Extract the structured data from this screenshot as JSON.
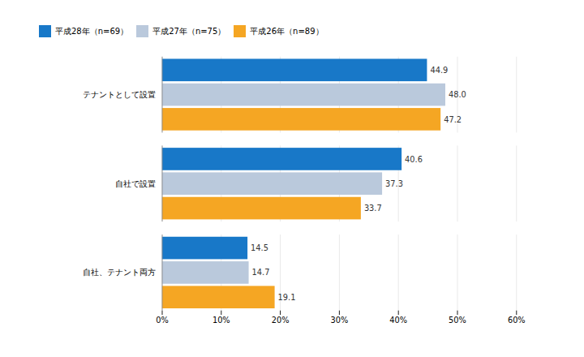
{
  "chart_data": {
    "type": "bar",
    "orientation": "horizontal",
    "categories": [
      "テナントとして設置",
      "自社で設置",
      "自社、テナント両方"
    ],
    "series": [
      {
        "name": "平成28年（n=69）",
        "color": "#1878C8",
        "values": [
          44.9,
          40.6,
          14.5
        ],
        "value_labels": [
          "44.9",
          "40.6",
          "14.5"
        ]
      },
      {
        "name": "平成27年（n=75）",
        "color": "#BAC9DC",
        "values": [
          48.0,
          37.3,
          14.7
        ],
        "value_labels": [
          "48.0",
          "37.3",
          "14.7"
        ]
      },
      {
        "name": "平成26年（n=89）",
        "color": "#F5A623",
        "values": [
          47.2,
          33.7,
          19.1
        ],
        "value_labels": [
          "47.2",
          "33.7",
          "19.1"
        ]
      }
    ],
    "xlim": [
      0,
      60
    ],
    "xticks": [
      {
        "value": 0,
        "label": "0%"
      },
      {
        "value": 10,
        "label": "10%"
      },
      {
        "value": 20,
        "label": "20%"
      },
      {
        "value": 30,
        "label": "30%"
      },
      {
        "value": 40,
        "label": "40%"
      },
      {
        "value": 50,
        "label": "50%"
      },
      {
        "value": 60,
        "label": "60%"
      }
    ],
    "grid": true,
    "legend": "top",
    "data_labels": true
  }
}
